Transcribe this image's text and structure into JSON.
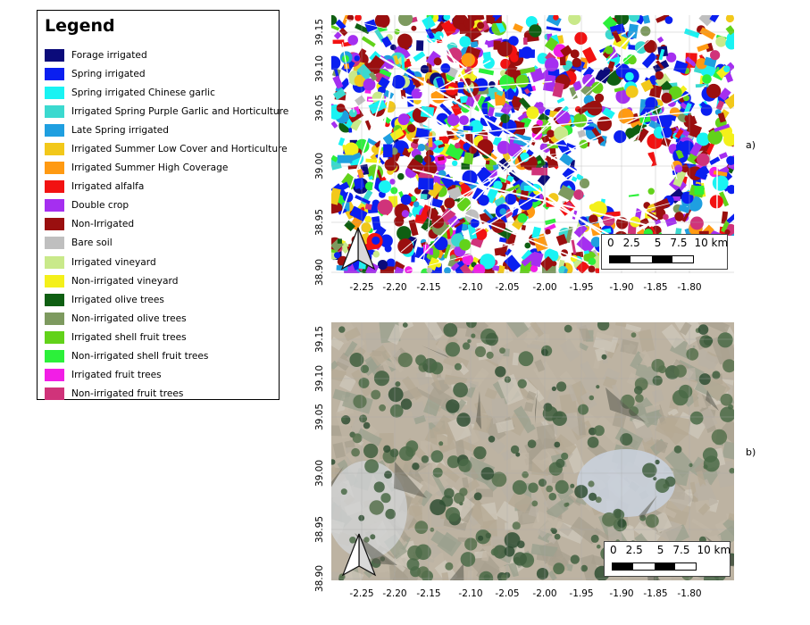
{
  "legend": {
    "title": "Legend",
    "items": [
      {
        "label": "Forage irrigated",
        "color": "#0b0b7a"
      },
      {
        "label": "Spring irrigated",
        "color": "#0a1ff0"
      },
      {
        "label": "Spring irrigated Chinese garlic",
        "color": "#19f3f3"
      },
      {
        "label": "Irrigated Spring Purple Garlic and Horticulture",
        "color": "#3bd9cf"
      },
      {
        "label": "Late Spring irrigated",
        "color": "#1f9fe0"
      },
      {
        "label": "Irrigated Summer Low Cover and Horticulture",
        "color": "#f2c81a"
      },
      {
        "label": "Irrigated Summer High Coverage",
        "color": "#ff9a12"
      },
      {
        "label": "Irrigated alfalfa",
        "color": "#f21212"
      },
      {
        "label": "Double crop",
        "color": "#a52ff0"
      },
      {
        "label": "Non-Irrigated",
        "color": "#9a0f0f"
      },
      {
        "label": "Bare soil",
        "color": "#bfbfbf"
      },
      {
        "label": "Irrigated vineyard",
        "color": "#c9e98a"
      },
      {
        "label": "Non-irrigated vineyard",
        "color": "#f4f01a"
      },
      {
        "label": "Irrigated olive trees",
        "color": "#0f5f12"
      },
      {
        "label": "Non-irrigated olive trees",
        "color": "#7d9a5f"
      },
      {
        "label": "Irrigated shell fruit trees",
        "color": "#62d21a"
      },
      {
        "label": "Non-irrigated shell fruit trees",
        "color": "#2cf03a"
      },
      {
        "label": "Irrigated fruit trees",
        "color": "#f21ee6"
      },
      {
        "label": "Non-irrigated fruit trees",
        "color": "#d0337a"
      }
    ]
  },
  "axes": {
    "x_ticks": [
      "-2.25",
      "-2.20",
      "-2.15",
      "-2.10",
      "-2.05",
      "-2.00",
      "-1.95",
      "-1.90",
      "-1.85",
      "-1.80"
    ],
    "y_ticks": [
      "39.15",
      "39.10",
      "39.05",
      "39.00",
      "38.95",
      "38.90"
    ]
  },
  "panels": [
    {
      "id": "a",
      "label": "a)",
      "kind": "classification map"
    },
    {
      "id": "b",
      "label": "b)",
      "kind": "satellite image"
    }
  ],
  "scale_bar": {
    "labels": [
      "0",
      "2.5",
      "5",
      "7.5",
      "10 km"
    ]
  },
  "icons": {
    "north_arrow": "north-arrow-icon"
  }
}
